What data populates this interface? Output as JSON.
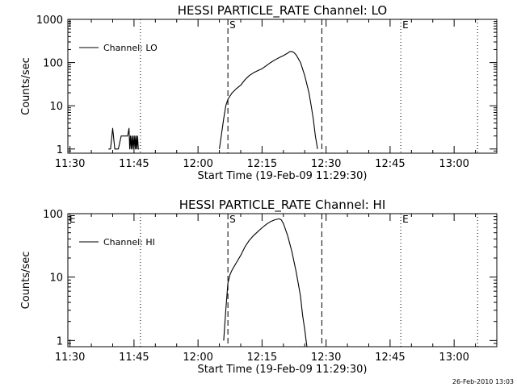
{
  "footer": {
    "datestamp": "26-Feb-2010 13:03"
  },
  "chart_data": [
    {
      "type": "line",
      "title": "HESSI PARTICLE_RATE Channel: LO",
      "xlabel": "Start Time (19-Feb-09 11:29:30)",
      "ylabel": "Counts/sec",
      "yscale": "log",
      "ylim": [
        0.8,
        1000
      ],
      "xlim": [
        "11:29:30",
        "13:10:00"
      ],
      "x_ticks": [
        "11:30",
        "11:45",
        "12:00",
        "12:15",
        "12:30",
        "12:45",
        "13:00"
      ],
      "y_ticks": [
        "1",
        "10",
        "100",
        "1000"
      ],
      "legend": {
        "position": "top-left",
        "entries": [
          "Channel: LO"
        ]
      },
      "markers": [
        {
          "label": "",
          "time": "11:46:30",
          "style": "dotted"
        },
        {
          "label": "S",
          "time": "12:07:00",
          "style": "dashed"
        },
        {
          "label": "",
          "time": "12:29:00",
          "style": "dashed"
        },
        {
          "label": "E",
          "time": "12:47:30",
          "style": "dotted"
        },
        {
          "label": "",
          "time": "13:05:30",
          "style": "dotted"
        }
      ],
      "series": [
        {
          "x": [
            "11:39:00",
            "11:39:30",
            "11:40:00",
            "11:40:30",
            "11:41:00",
            "11:41:20",
            "11:42:00",
            "11:42:30",
            "11:43:30",
            "11:43:50",
            "11:44:00",
            "11:44:10",
            "11:44:20",
            "11:44:30",
            "11:44:40",
            "11:44:50",
            "11:45:00",
            "11:45:10",
            "11:45:20",
            "11:45:30",
            "11:45:40",
            "11:45:50",
            "11:46:00",
            "11:46:10"
          ],
          "y": [
            1,
            1,
            3,
            1,
            1,
            1,
            2,
            2,
            2,
            3,
            1,
            2,
            1,
            2,
            1,
            2,
            1,
            2,
            1,
            2,
            1,
            2,
            1,
            1
          ]
        },
        {
          "x": [
            "12:05:00",
            "12:06:00",
            "12:06:30",
            "12:07:00",
            "12:07:30",
            "12:08:00",
            "12:09:00",
            "12:10:00",
            "12:11:00",
            "12:12:00",
            "12:13:00",
            "12:14:00",
            "12:15:00",
            "12:16:00",
            "12:17:00",
            "12:18:00",
            "12:19:00",
            "12:20:00",
            "12:21:00",
            "12:21:30",
            "12:22:00",
            "12:22:30",
            "12:23:00",
            "12:24:00",
            "12:25:00",
            "12:26:00",
            "12:26:30",
            "12:27:00",
            "12:27:30",
            "12:28:00"
          ],
          "y": [
            1,
            5,
            10,
            14,
            17,
            20,
            25,
            30,
            40,
            50,
            58,
            65,
            72,
            85,
            100,
            115,
            130,
            145,
            165,
            180,
            180,
            170,
            150,
            100,
            50,
            20,
            10,
            5,
            2,
            1
          ]
        }
      ]
    },
    {
      "type": "line",
      "title": "HESSI PARTICLE_RATE Channel: HI",
      "xlabel": "Start Time (19-Feb-09 11:29:30)",
      "ylabel": "Counts/sec",
      "yscale": "log",
      "ylim": [
        0.8,
        100
      ],
      "xlim": [
        "11:29:30",
        "13:10:00"
      ],
      "x_ticks": [
        "11:30",
        "11:45",
        "12:00",
        "12:15",
        "12:30",
        "12:45",
        "13:00"
      ],
      "y_ticks": [
        "1",
        "10",
        "100"
      ],
      "legend": {
        "position": "top-left",
        "entries": [
          "Channel: HI"
        ]
      },
      "markers": [
        {
          "label": "E",
          "time": "11:29:30",
          "style": "none"
        },
        {
          "label": "",
          "time": "11:46:30",
          "style": "dotted"
        },
        {
          "label": "S",
          "time": "12:07:00",
          "style": "dashed"
        },
        {
          "label": "",
          "time": "12:29:00",
          "style": "dashed"
        },
        {
          "label": "E",
          "time": "12:47:30",
          "style": "dotted"
        },
        {
          "label": "",
          "time": "13:05:30",
          "style": "dotted"
        }
      ],
      "series": [
        {
          "x": [
            "12:06:00",
            "12:06:30",
            "12:07:00",
            "12:07:30",
            "12:08:00",
            "12:09:00",
            "12:10:00",
            "12:11:00",
            "12:12:00",
            "12:13:00",
            "12:14:00",
            "12:15:00",
            "12:16:00",
            "12:17:00",
            "12:18:00",
            "12:19:00",
            "12:19:30",
            "12:20:00",
            "12:21:00",
            "12:22:00",
            "12:23:00",
            "12:24:00",
            "12:24:30",
            "12:25:00",
            "12:25:30"
          ],
          "y": [
            1,
            3,
            8,
            11,
            13,
            17,
            22,
            30,
            38,
            45,
            52,
            60,
            68,
            75,
            80,
            83,
            80,
            70,
            45,
            25,
            12,
            5,
            2.5,
            1.5,
            0.8
          ]
        }
      ]
    }
  ]
}
